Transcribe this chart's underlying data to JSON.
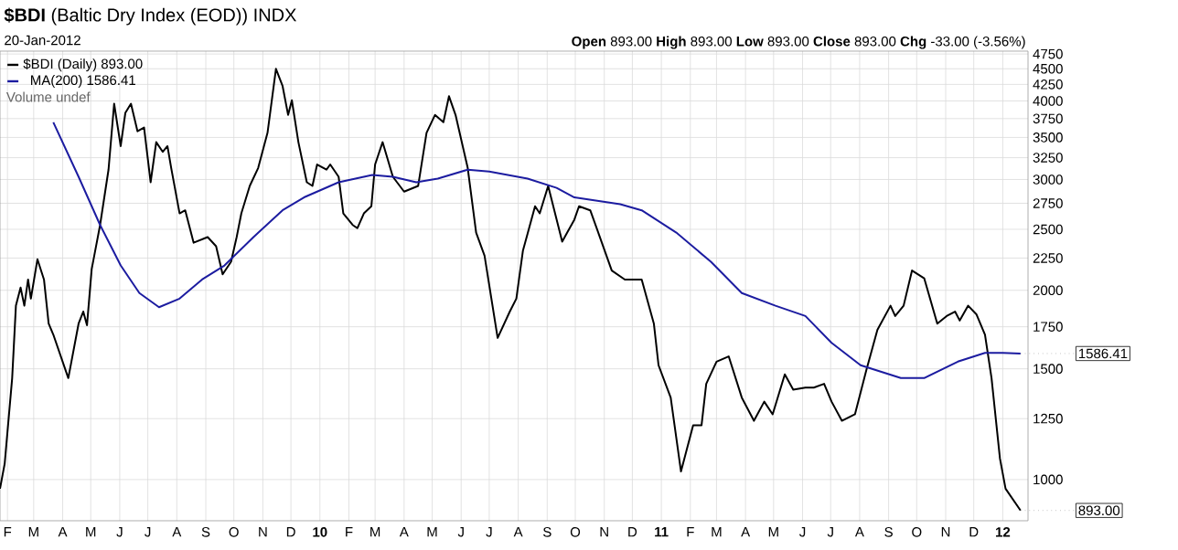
{
  "chart_data": {
    "type": "line",
    "title": "**$BDI** (Baltic Dry Index (EOD)) INDX",
    "subtitle": "20-Jan-2012",
    "annotations": [
      "Volume undef",
      "**Open** 893.00  **High** 893.00  **Low** 893.00  **Close** 893.00  **Chg** -33.00 (-3.56%)",
      {
        "text": "1586.41",
        "x": "2012-01-20",
        "y": 1586.41
      },
      {
        "text": "893.00",
        "x": "2012-01-20",
        "y": 893
      }
    ],
    "series": [
      {
        "name": "$BDI (Daily) 893.00",
        "color": "#000000",
        "x": [
          "2009-01-24",
          "2009-01-29",
          "2009-02-06",
          "2009-02-10",
          "2009-02-15",
          "2009-02-19",
          "2009-02-23",
          "2009-02-26",
          "2009-03-05",
          "2009-03-12",
          "2009-03-17",
          "2009-03-22",
          "2009-04-07",
          "2009-04-18",
          "2009-04-23",
          "2009-04-27",
          "2009-05-02",
          "2009-05-11",
          "2009-05-20",
          "2009-05-26",
          "2009-06-02",
          "2009-06-07",
          "2009-06-13",
          "2009-06-20",
          "2009-06-27",
          "2009-07-04",
          "2009-07-10",
          "2009-07-17",
          "2009-07-22",
          "2009-07-26",
          "2009-08-04",
          "2009-08-10",
          "2009-08-19",
          "2009-09-03",
          "2009-09-12",
          "2009-09-19",
          "2009-09-28",
          "2009-10-04",
          "2009-10-09",
          "2009-10-18",
          "2009-10-27",
          "2009-11-06",
          "2009-11-15",
          "2009-11-22",
          "2009-11-28",
          "2009-12-02",
          "2009-12-09",
          "2009-12-18",
          "2009-12-24",
          "2009-12-29",
          "2010-01-08",
          "2010-01-12",
          "2010-01-21",
          "2010-01-26",
          "2010-02-05",
          "2010-02-10",
          "2010-02-17",
          "2010-02-25",
          "2010-03-01",
          "2010-03-09",
          "2010-03-20",
          "2010-04-01",
          "2010-04-16",
          "2010-04-25",
          "2010-05-04",
          "2010-05-13",
          "2010-05-19",
          "2010-05-26",
          "2010-06-08",
          "2010-06-17",
          "2010-06-26",
          "2010-07-10",
          "2010-07-23",
          "2010-07-30",
          "2010-08-06",
          "2010-08-19",
          "2010-08-24",
          "2010-09-02",
          "2010-09-17",
          "2010-09-30",
          "2010-10-05",
          "2010-10-17",
          "2010-10-26",
          "2010-11-09",
          "2010-11-23",
          "2010-12-11",
          "2010-12-24",
          "2010-12-29",
          "2011-01-11",
          "2011-01-22",
          "2011-02-04",
          "2011-02-13",
          "2011-02-18",
          "2011-03-01",
          "2011-03-14",
          "2011-03-28",
          "2011-04-10",
          "2011-04-21",
          "2011-04-30",
          "2011-05-13",
          "2011-05-22",
          "2011-06-04",
          "2011-06-13",
          "2011-06-24",
          "2011-07-02",
          "2011-07-13",
          "2011-07-27",
          "2011-08-08",
          "2011-08-20",
          "2011-09-03",
          "2011-09-08",
          "2011-09-17",
          "2011-09-26",
          "2011-10-09",
          "2011-10-23",
          "2011-11-02",
          "2011-11-11",
          "2011-11-16",
          "2011-11-25",
          "2011-12-04",
          "2011-12-13",
          "2011-12-20",
          "2011-12-29",
          "2012-01-04",
          "2012-01-20"
        ],
        "values": [
          967,
          1060,
          1450,
          1890,
          2020,
          1890,
          2080,
          1940,
          2240,
          2080,
          1770,
          1700,
          1450,
          1770,
          1850,
          1760,
          2160,
          2540,
          3110,
          3960,
          3390,
          3830,
          3960,
          3580,
          3630,
          2970,
          3440,
          3320,
          3390,
          3130,
          2650,
          2680,
          2380,
          2430,
          2350,
          2120,
          2220,
          2430,
          2650,
          2930,
          3130,
          3560,
          4500,
          4230,
          3800,
          4010,
          3440,
          2970,
          2930,
          3170,
          3110,
          3170,
          3030,
          2650,
          2540,
          2510,
          2650,
          2720,
          3170,
          3440,
          3030,
          2870,
          2930,
          3560,
          3800,
          3700,
          4070,
          3800,
          3130,
          2470,
          2270,
          1680,
          1850,
          1940,
          2310,
          2720,
          2650,
          2930,
          2390,
          2590,
          2720,
          2680,
          2460,
          2150,
          2080,
          2080,
          1770,
          1520,
          1350,
          1030,
          1220,
          1220,
          1420,
          1540,
          1570,
          1350,
          1240,
          1330,
          1270,
          1470,
          1390,
          1400,
          1400,
          1420,
          1330,
          1240,
          1270,
          1490,
          1730,
          1890,
          1820,
          1890,
          2150,
          2090,
          1770,
          1820,
          1850,
          1790,
          1890,
          1830,
          1700,
          1450,
          1080,
          967,
          893
        ]
      },
      {
        "name": "MA(200) 1586.41",
        "color": "#1c1ca0",
        "x": [
          "2009-03-22",
          "2009-04-18",
          "2009-05-11",
          "2009-06-02",
          "2009-06-22",
          "2009-07-13",
          "2009-08-04",
          "2009-08-28",
          "2009-09-21",
          "2009-10-22",
          "2009-11-22",
          "2009-12-15",
          "2010-01-21",
          "2010-02-26",
          "2010-03-20",
          "2010-04-14",
          "2010-05-07",
          "2010-06-08",
          "2010-07-01",
          "2010-08-11",
          "2010-09-11",
          "2010-09-30",
          "2010-11-18",
          "2010-12-11",
          "2011-01-17",
          "2011-02-23",
          "2011-03-28",
          "2011-05-03",
          "2011-06-04",
          "2011-07-02",
          "2011-08-02",
          "2011-09-14",
          "2011-10-09",
          "2011-11-14",
          "2011-12-13",
          "2012-01-01",
          "2012-01-20"
        ],
        "values": [
          3700,
          3030,
          2540,
          2190,
          1980,
          1880,
          1940,
          2080,
          2190,
          2430,
          2680,
          2810,
          2970,
          3050,
          3030,
          2970,
          3010,
          3110,
          3090,
          3010,
          2910,
          2810,
          2740,
          2680,
          2470,
          2220,
          1980,
          1890,
          1820,
          1650,
          1520,
          1450,
          1450,
          1540,
          1590,
          1590,
          1586.41
        ]
      }
    ],
    "xlim": [
      "2009-01-24",
      "2012-01-28"
    ],
    "xticks": [
      {
        "value": "2009-02-01",
        "label": "F"
      },
      {
        "value": "2009-03-01",
        "label": "M"
      },
      {
        "value": "2009-04-01",
        "label": "A"
      },
      {
        "value": "2009-05-01",
        "label": "M"
      },
      {
        "value": "2009-06-01",
        "label": "J"
      },
      {
        "value": "2009-07-01",
        "label": "J"
      },
      {
        "value": "2009-08-01",
        "label": "A"
      },
      {
        "value": "2009-09-01",
        "label": "S"
      },
      {
        "value": "2009-10-01",
        "label": "O"
      },
      {
        "value": "2009-11-01",
        "label": "N"
      },
      {
        "value": "2009-12-01",
        "label": "D"
      },
      {
        "value": "2010-01-01",
        "label": "**10**"
      },
      {
        "value": "2010-02-01",
        "label": "F"
      },
      {
        "value": "2010-03-01",
        "label": "M"
      },
      {
        "value": "2010-04-01",
        "label": "A"
      },
      {
        "value": "2010-05-01",
        "label": "M"
      },
      {
        "value": "2010-06-01",
        "label": "J"
      },
      {
        "value": "2010-07-01",
        "label": "J"
      },
      {
        "value": "2010-08-01",
        "label": "A"
      },
      {
        "value": "2010-09-01",
        "label": "S"
      },
      {
        "value": "2010-10-01",
        "label": "O"
      },
      {
        "value": "2010-11-01",
        "label": "N"
      },
      {
        "value": "2010-12-01",
        "label": "D"
      },
      {
        "value": "2011-01-01",
        "label": "**11**"
      },
      {
        "value": "2011-02-01",
        "label": "F"
      },
      {
        "value": "2011-03-01",
        "label": "M"
      },
      {
        "value": "2011-04-01",
        "label": "A"
      },
      {
        "value": "2011-05-01",
        "label": "M"
      },
      {
        "value": "2011-06-01",
        "label": "J"
      },
      {
        "value": "2011-07-01",
        "label": "J"
      },
      {
        "value": "2011-08-01",
        "label": "A"
      },
      {
        "value": "2011-09-01",
        "label": "S"
      },
      {
        "value": "2011-10-01",
        "label": "O"
      },
      {
        "value": "2011-11-01",
        "label": "N"
      },
      {
        "value": "2011-12-01",
        "label": "D"
      },
      {
        "value": "2012-01-01",
        "label": "**12**"
      }
    ],
    "ylim": [
      860,
      4800
    ],
    "yticks": [
      1000,
      1250,
      1500,
      1750,
      2000,
      2250,
      2500,
      2750,
      3000,
      3250,
      3500,
      3750,
      4000,
      4250,
      4500,
      4750
    ],
    "log": "y",
    "grid": true,
    "legend": "top left"
  }
}
